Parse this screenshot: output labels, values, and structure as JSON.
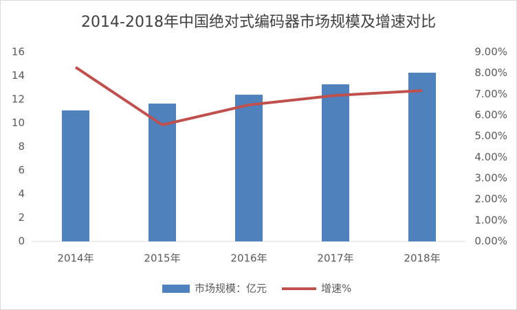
{
  "chart_data": {
    "type": "bar",
    "title": "2014-2018年中国绝对式编码器市场规模及增速对比",
    "categories": [
      "2014年",
      "2015年",
      "2016年",
      "2017年",
      "2018年"
    ],
    "series": [
      {
        "name": "市场规模：亿元",
        "type": "bar",
        "color": "#4f81bd",
        "values": [
          11.07,
          11.65,
          12.4,
          13.28,
          14.26
        ]
      },
      {
        "name": "增速%",
        "type": "line",
        "axis": "y2",
        "color": "#c0504d",
        "values": [
          8.28,
          5.54,
          6.49,
          6.94,
          7.17
        ]
      }
    ],
    "ylim": [
      0,
      16
    ],
    "yticks": [
      0,
      2,
      4,
      6,
      8,
      10,
      12,
      14,
      16
    ],
    "y2lim": [
      0,
      9
    ],
    "y2ticks": [
      {
        "value": 0,
        "label": "0.00%"
      },
      {
        "value": 1,
        "label": "1.00%"
      },
      {
        "value": 2,
        "label": "2.00%"
      },
      {
        "value": 3,
        "label": "3.00%"
      },
      {
        "value": 4,
        "label": "4.00%"
      },
      {
        "value": 5,
        "label": "5.00%"
      },
      {
        "value": 6,
        "label": "6.00%"
      },
      {
        "value": 7,
        "label": "7.00%"
      },
      {
        "value": 8,
        "label": "8.00%"
      },
      {
        "value": 9,
        "label": "9.00%"
      }
    ],
    "grid": false,
    "legend": "bottom"
  }
}
